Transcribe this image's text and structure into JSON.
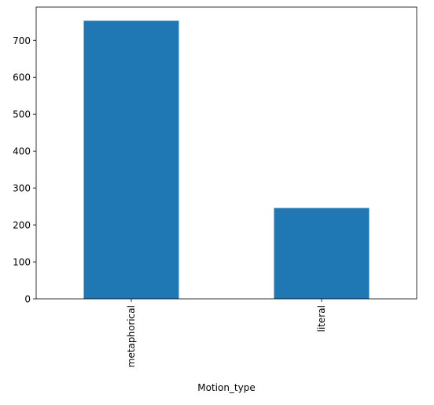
{
  "chart_data": {
    "type": "bar",
    "categories": [
      "metaphorical",
      "literal"
    ],
    "values": [
      753,
      246
    ],
    "title": "",
    "xlabel": "Motion_type",
    "ylabel": "",
    "ylim": [
      0,
      790
    ],
    "yticks": [
      0,
      100,
      200,
      300,
      400,
      500,
      600,
      700
    ],
    "bar_color": "#1f77b4",
    "grid": false,
    "legend": "none",
    "x_tick_rotation": "vertical"
  }
}
